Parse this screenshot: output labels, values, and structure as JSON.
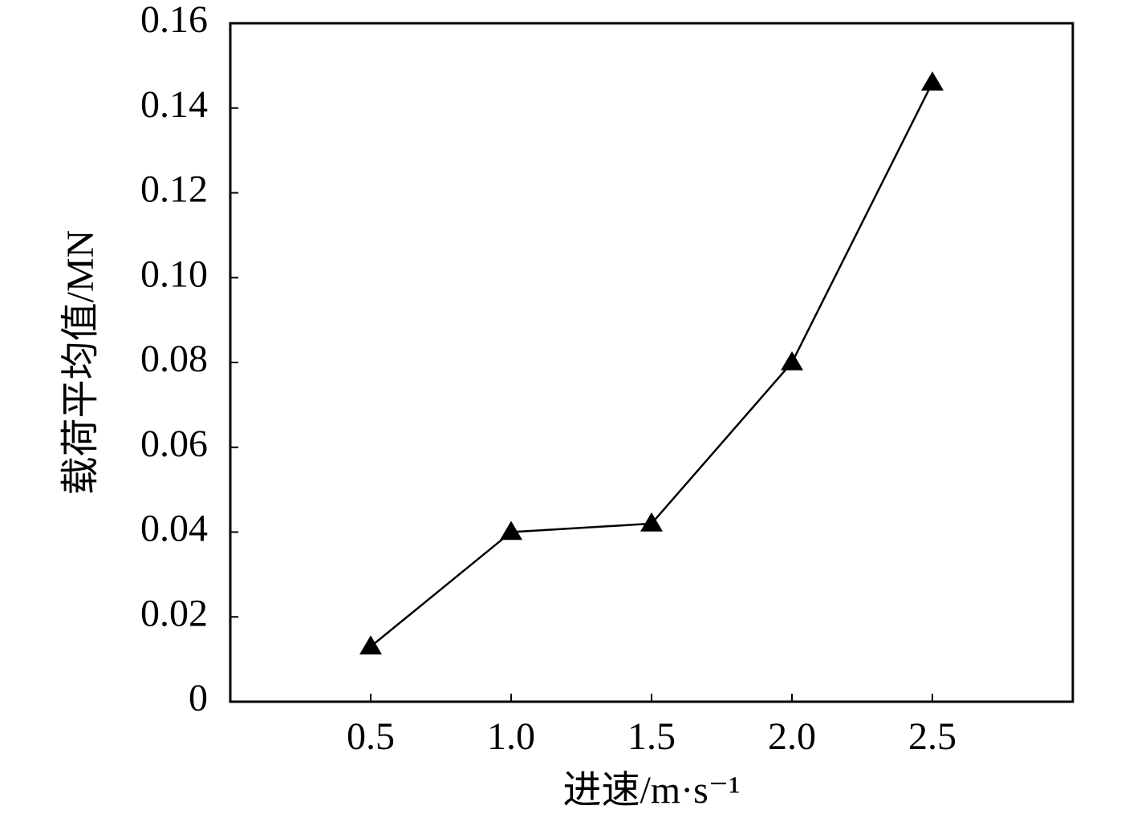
{
  "chart_data": {
    "type": "line",
    "x_label": "进速/m·s⁻¹",
    "y_label": "载荷平均值/MN",
    "x": [
      0.5,
      1,
      1.5,
      2,
      2.5
    ],
    "values": [
      0.013,
      0.04,
      0.042,
      0.08,
      0.146
    ],
    "color": "#000000",
    "marker": "triangle",
    "xlim": [
      0,
      3
    ],
    "xticks": [
      0.5,
      {
        "value": 1,
        "label": "1.0"
      },
      1.5,
      {
        "value": 2,
        "label": "2.0"
      },
      2.5
    ],
    "ylim": [
      0,
      0.16
    ],
    "yticks": [
      0,
      0.02,
      0.04,
      0.06,
      0.08,
      {
        "value": 0.1,
        "label": "0.10"
      },
      0.12,
      0.14,
      0.16
    ],
    "grid": false
  }
}
